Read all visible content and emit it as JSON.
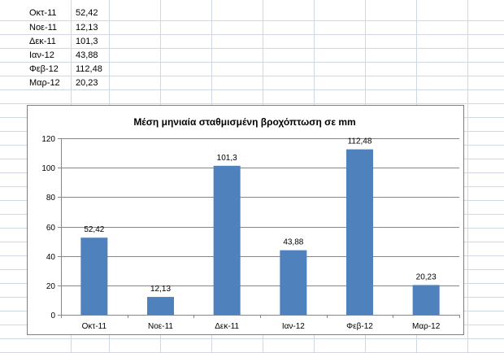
{
  "sheet": {
    "rows": [
      {
        "label": "Οκτ-11",
        "value": "52,42"
      },
      {
        "label": "Νοε-11",
        "value": "12,13"
      },
      {
        "label": "Δεκ-11",
        "value": "101,3"
      },
      {
        "label": "Ιαν-12",
        "value": "43,88"
      },
      {
        "label": "Φεβ-12",
        "value": "112,48"
      },
      {
        "label": "Μαρ-12",
        "value": "20,23"
      }
    ]
  },
  "chart_data": {
    "type": "bar",
    "title": "Μέση μηνιαία σταθμισμένη βροχόπτωση  σε mm",
    "categories": [
      "Οκτ-11",
      "Νοε-11",
      "Δεκ-11",
      "Ιαν-12",
      "Φεβ-12",
      "Μαρ-12"
    ],
    "values": [
      52.42,
      12.13,
      101.3,
      43.88,
      112.48,
      20.23
    ],
    "data_labels": [
      "52,42",
      "12,13",
      "101,3",
      "43,88",
      "112,48",
      "20,23"
    ],
    "ylim": [
      0,
      120
    ],
    "yticks": [
      0,
      20,
      40,
      60,
      80,
      100,
      120
    ],
    "grid": true,
    "bar_color": "#4f81bd",
    "gridline_color": "#868686"
  }
}
